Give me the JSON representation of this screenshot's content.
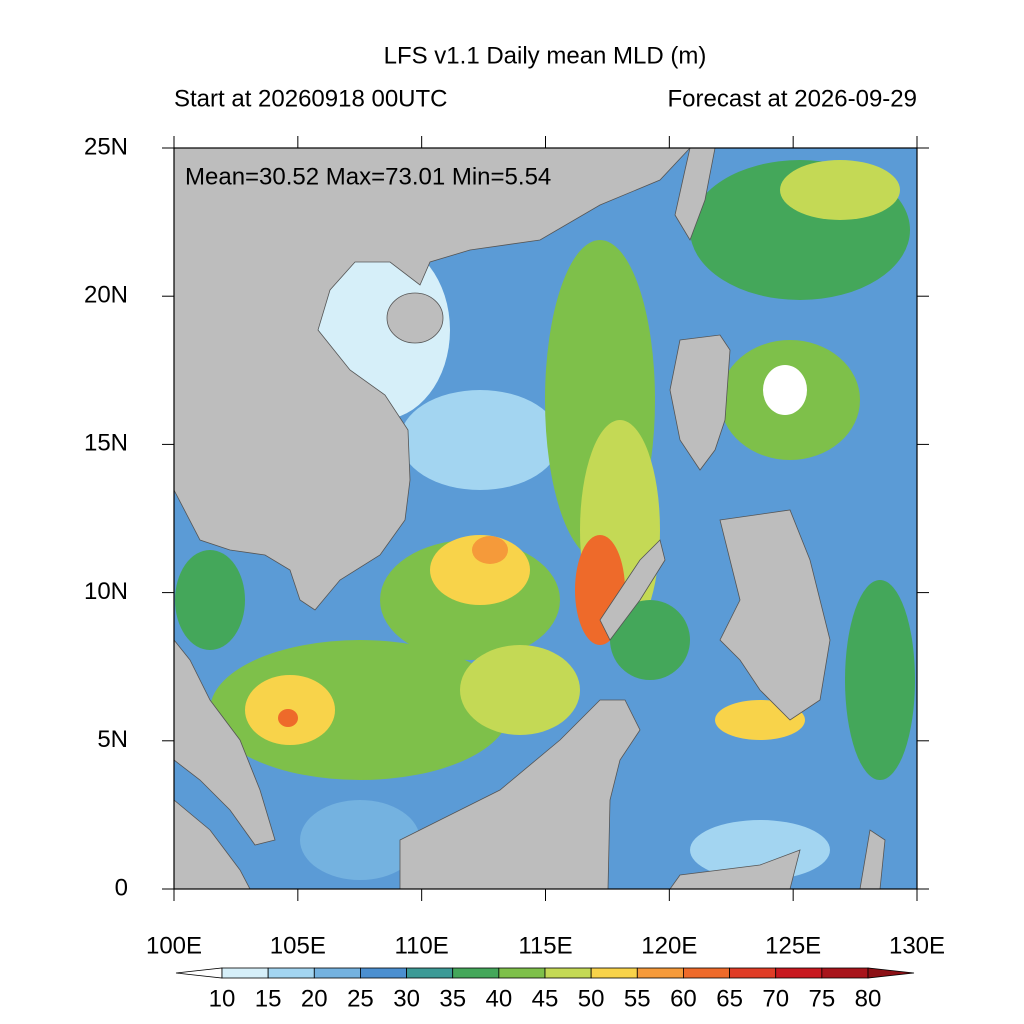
{
  "chart_data": {
    "type": "contour_map",
    "title": "LFS v1.1 Daily mean MLD (m)",
    "subtitle_left": "Start at 20260918 00UTC",
    "subtitle_right": "Forecast at 2026-09-29",
    "stats": "Mean=30.52  Max=73.01  Min=5.54",
    "xlim": [
      100,
      130
    ],
    "ylim": [
      0,
      25
    ],
    "xticks": [
      {
        "value": 100,
        "label": "100E"
      },
      {
        "value": 105,
        "label": "105E"
      },
      {
        "value": 110,
        "label": "110E"
      },
      {
        "value": 115,
        "label": "115E"
      },
      {
        "value": 120,
        "label": "120E"
      },
      {
        "value": 125,
        "label": "125E"
      },
      {
        "value": 130,
        "label": "130E"
      }
    ],
    "yticks": [
      0,
      {
        "value": 5,
        "label": "5N"
      },
      {
        "value": 10,
        "label": "10N"
      },
      {
        "value": 15,
        "label": "15N"
      },
      {
        "value": 20,
        "label": "20N"
      },
      {
        "value": 25,
        "label": "25N"
      }
    ],
    "colorbar": {
      "levels": [
        10,
        15,
        20,
        25,
        30,
        35,
        40,
        45,
        50,
        55,
        60,
        65,
        70,
        75,
        80
      ],
      "colors": [
        "#ffffff",
        "#d6eff9",
        "#a3d5f1",
        "#74b2e0",
        "#4b8fd0",
        "#3c9a96",
        "#44a75a",
        "#7ec04a",
        "#c4d955",
        "#f8d34a",
        "#f59a3a",
        "#ee6a2a",
        "#e03c26",
        "#c8181f",
        "#a8141b",
        "#8c1015"
      ]
    }
  }
}
